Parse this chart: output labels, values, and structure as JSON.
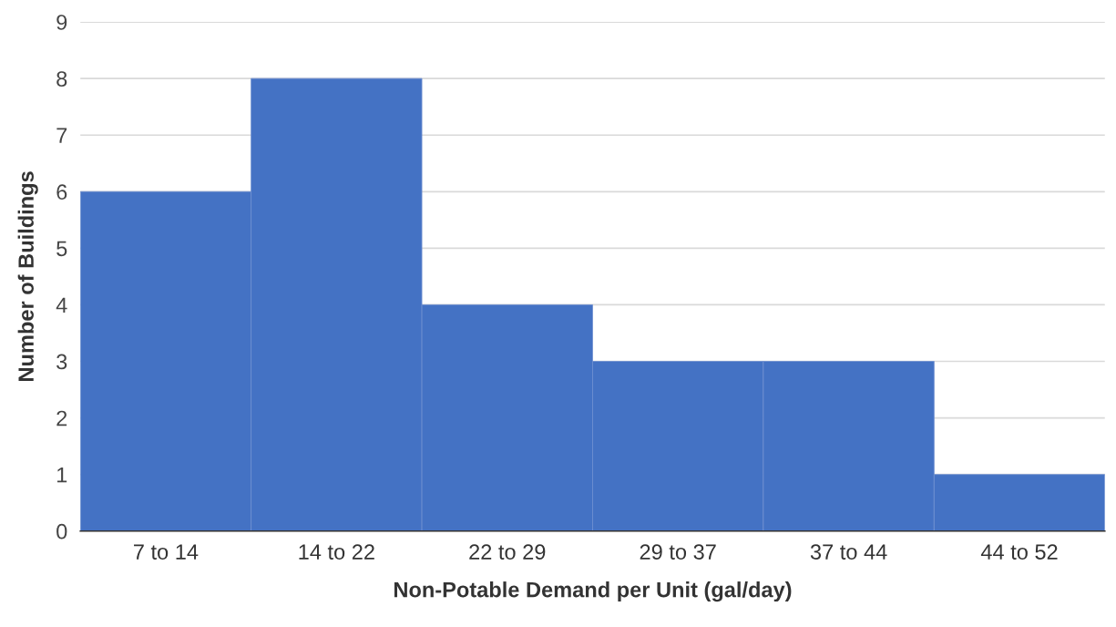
{
  "chart_data": {
    "type": "bar",
    "xlabel": "Non-Potable Demand per Unit (gal/day)",
    "ylabel": "Number of Buildings",
    "categories": [
      "7 to 14",
      "14 to 22",
      "22 to 29",
      "29 to 37",
      "37 to 44",
      "44 to 52"
    ],
    "values": [
      6,
      8,
      4,
      3,
      3,
      1
    ],
    "color": "#4472c4",
    "ylim": [
      0,
      9
    ],
    "yticks": [
      0,
      1,
      2,
      3,
      4,
      5,
      6,
      7,
      8,
      9
    ],
    "grid": "y",
    "legend": false
  }
}
